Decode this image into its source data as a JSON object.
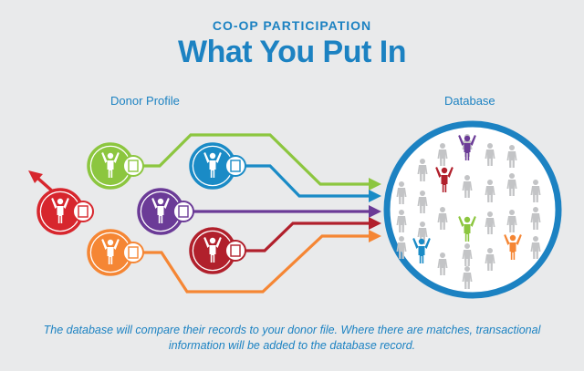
{
  "header": {
    "eyebrow": "CO-OP PARTICIPATION",
    "title": "What You Put In"
  },
  "labels": {
    "donor_profile": "Donor Profile",
    "database": "Database"
  },
  "caption": "The database will compare their records to your donor file. Where there are matches, transactional information will be added to the database record.",
  "colors": {
    "red": "#d7262d",
    "green": "#8cc63f",
    "teal": "#1a8bc6",
    "purple": "#6b3b97",
    "orange": "#f58634",
    "darkred": "#b1202c",
    "blue": "#1c82c2",
    "gray": "#c3c4c6"
  },
  "icons": {
    "donor": "person-arms-up-icon",
    "profile": "clipboard-icon",
    "arrow": "arrow-head-icon"
  }
}
